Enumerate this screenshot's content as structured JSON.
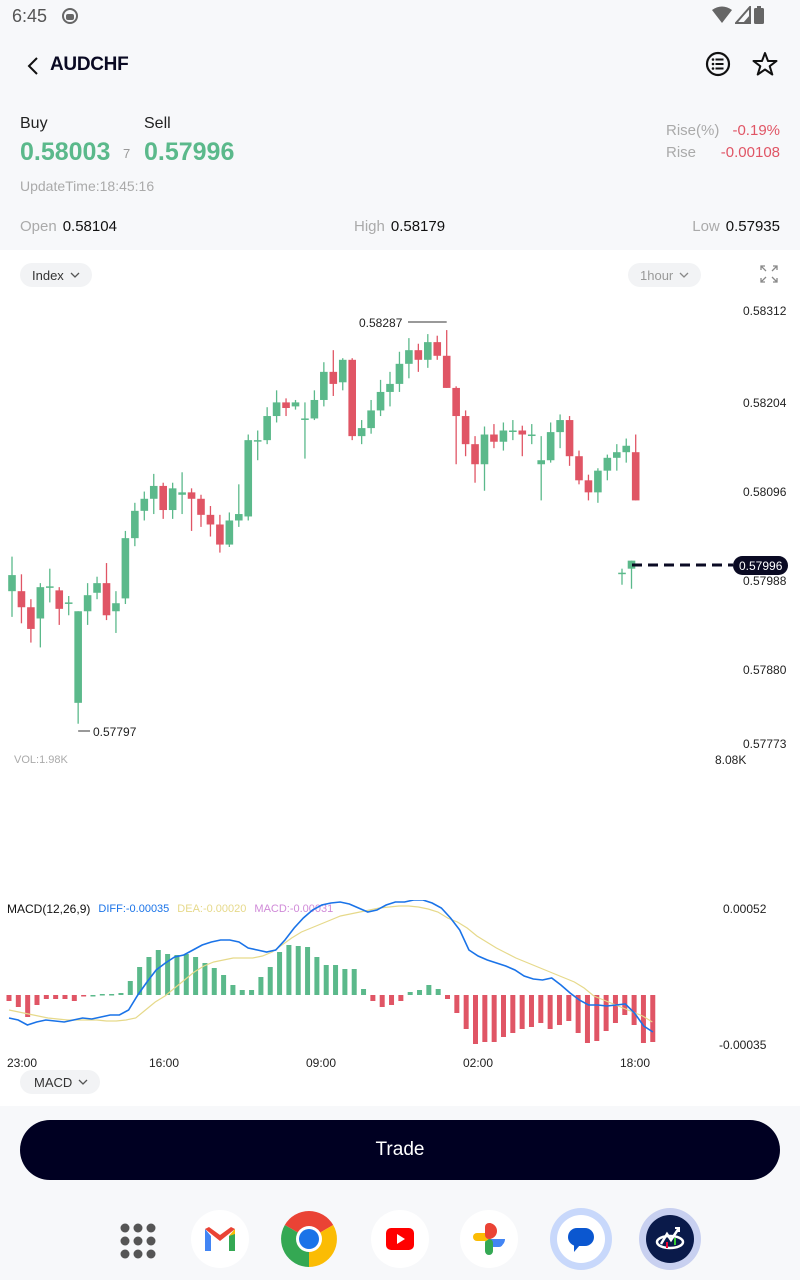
{
  "status_bar": {
    "time": "6:45"
  },
  "header": {
    "title": "AUDCHF"
  },
  "quote": {
    "buy_label": "Buy",
    "buy_price": "0.58003",
    "spread": "7",
    "sell_label": "Sell",
    "sell_price": "0.57996",
    "update_time": "UpdateTime:18:45:16",
    "rise_pct_label": "Rise(%)",
    "rise_pct_value": "-0.19%",
    "rise_label": "Rise",
    "rise_value": "-0.00108",
    "open_label": "Open",
    "open_value": "0.58104",
    "high_label": "High",
    "high_value": "0.58179",
    "low_label": "Low",
    "low_value": "0.57935"
  },
  "chart_controls": {
    "index_label": "Index",
    "interval_label": "1hour",
    "indicator_label": "MACD"
  },
  "colors": {
    "up": "#5bb98b",
    "down": "#e05565",
    "diff": "#1a73e8",
    "dea": "#e6d98a",
    "macd": "#d08ad8",
    "dark": "#0a0a23"
  },
  "chart_data": {
    "type": "candlestick",
    "title": "AUDCHF 1hour",
    "y_axis_ticks": [
      "0.58312",
      "0.58204",
      "0.58096",
      "0.57988",
      "0.57880",
      "0.57773"
    ],
    "x_axis_ticks": [
      "23:00",
      "16:00",
      "09:00",
      "02:00",
      "18:00"
    ],
    "current_price": "0.57996",
    "max_label": "0.58287",
    "min_label": "0.57797",
    "vol_label": "VOL:1.98K",
    "vol_max": "8.08K",
    "candles_ohlc": [
      [
        0.57962,
        0.57982,
        0.58005,
        0.5793
      ],
      [
        0.57962,
        0.57942,
        0.57983,
        0.57922
      ],
      [
        0.57942,
        0.57915,
        0.57952,
        0.57898
      ],
      [
        0.57928,
        0.57967,
        0.57972,
        0.57892
      ],
      [
        0.57968,
        0.57968,
        0.5799,
        0.57948
      ],
      [
        0.57963,
        0.5794,
        0.57967,
        0.5792
      ],
      [
        0.57948,
        0.57948,
        0.57956,
        0.57932
      ],
      [
        0.57823,
        0.57937,
        0.57937,
        0.57797
      ],
      [
        0.57937,
        0.57957,
        0.57972,
        0.5792
      ],
      [
        0.5796,
        0.57972,
        0.5798,
        0.57952
      ],
      [
        0.57972,
        0.57932,
        0.57997,
        0.57926
      ],
      [
        0.57937,
        0.57947,
        0.57962,
        0.5791
      ],
      [
        0.57953,
        0.58028,
        0.58037,
        0.57946
      ],
      [
        0.58028,
        0.58062,
        0.58072,
        0.58018
      ],
      [
        0.58062,
        0.58077,
        0.58086,
        0.5805
      ],
      [
        0.58077,
        0.58093,
        0.58108,
        0.58058
      ],
      [
        0.58093,
        0.58063,
        0.58097,
        0.58052
      ],
      [
        0.58063,
        0.5809,
        0.58097,
        0.58052
      ],
      [
        0.58082,
        0.58085,
        0.5811,
        0.58058
      ],
      [
        0.58085,
        0.58077,
        0.5809,
        0.58037
      ],
      [
        0.58077,
        0.58057,
        0.58082,
        0.58042
      ],
      [
        0.58057,
        0.58045,
        0.58068,
        0.5803
      ],
      [
        0.58045,
        0.5802,
        0.58057,
        0.5801
      ],
      [
        0.5802,
        0.5805,
        0.5806,
        0.58017
      ],
      [
        0.5805,
        0.58058,
        0.58095,
        0.58042
      ],
      [
        0.58055,
        0.5815,
        0.58157,
        0.5805
      ],
      [
        0.5815,
        0.5815,
        0.58162,
        0.58125
      ],
      [
        0.5815,
        0.5818,
        0.58191,
        0.58145
      ],
      [
        0.5818,
        0.58197,
        0.58212,
        0.58172
      ],
      [
        0.58197,
        0.5819,
        0.58202,
        0.5818
      ],
      [
        0.58192,
        0.58197,
        0.582,
        0.58188
      ],
      [
        0.58177,
        0.58177,
        0.58197,
        0.58127
      ],
      [
        0.58177,
        0.582,
        0.58212,
        0.58175
      ],
      [
        0.582,
        0.58235,
        0.58247,
        0.58192
      ],
      [
        0.58235,
        0.5822,
        0.58262,
        0.58205
      ],
      [
        0.58222,
        0.5825,
        0.58252,
        0.58212
      ],
      [
        0.5825,
        0.58155,
        0.58252,
        0.5815
      ],
      [
        0.58155,
        0.58165,
        0.58175,
        0.58145
      ],
      [
        0.58165,
        0.58187,
        0.582,
        0.58158
      ],
      [
        0.58187,
        0.5821,
        0.58225,
        0.5818
      ],
      [
        0.5821,
        0.5822,
        0.58235,
        0.58192
      ],
      [
        0.5822,
        0.58245,
        0.5826,
        0.5821
      ],
      [
        0.58245,
        0.58262,
        0.58277,
        0.58227
      ],
      [
        0.58262,
        0.5825,
        0.5827,
        0.58235
      ],
      [
        0.5825,
        0.58272,
        0.58282,
        0.5824
      ],
      [
        0.58272,
        0.58255,
        0.5828,
        0.5825
      ],
      [
        0.58255,
        0.58215,
        0.58287,
        0.58215
      ],
      [
        0.58215,
        0.5818,
        0.58217,
        0.5812
      ],
      [
        0.5818,
        0.58145,
        0.58187,
        0.5813
      ],
      [
        0.58145,
        0.5812,
        0.58155,
        0.58097
      ],
      [
        0.5812,
        0.58157,
        0.58167,
        0.58087
      ],
      [
        0.58157,
        0.58148,
        0.5817,
        0.5814
      ],
      [
        0.58148,
        0.58162,
        0.58172,
        0.58137
      ],
      [
        0.58162,
        0.58162,
        0.58175,
        0.5815
      ],
      [
        0.58162,
        0.58157,
        0.58168,
        0.5813
      ],
      [
        0.58157,
        0.58157,
        0.5817,
        0.58145
      ],
      [
        0.5812,
        0.58125,
        0.58155,
        0.58075
      ],
      [
        0.58125,
        0.5816,
        0.58172,
        0.58122
      ],
      [
        0.5816,
        0.58175,
        0.58182,
        0.5814
      ],
      [
        0.58175,
        0.5813,
        0.5818,
        0.58118
      ],
      [
        0.5813,
        0.581,
        0.58137,
        0.58095
      ],
      [
        0.581,
        0.58085,
        0.58107,
        0.58075
      ],
      [
        0.58085,
        0.58112,
        0.58115,
        0.58072
      ],
      [
        0.58112,
        0.58128,
        0.58132,
        0.581
      ],
      [
        0.58128,
        0.58135,
        0.58145,
        0.58112
      ],
      [
        0.58135,
        0.58143,
        0.58152,
        0.58122
      ],
      [
        0.58135,
        0.58075,
        0.58157,
        0.58075
      ],
      [
        0.57985,
        0.57985,
        0.5799,
        0.5797
      ],
      [
        0.5799,
        0.58,
        0.58,
        0.57965
      ]
    ],
    "macd": {
      "label": "MACD(12,26,9)",
      "diff_label": "DIFF:-0.00035",
      "dea_label": "DEA:-0.00020",
      "macd_label": "MACD:-0.00031",
      "y_max": "0.00052",
      "y_min": "-0.00035"
    }
  },
  "trade_button": {
    "label": "Trade"
  },
  "dock": {
    "apps": [
      "App drawer",
      "Gmail",
      "Chrome",
      "YouTube",
      "Photos",
      "Messages",
      "Trading app"
    ]
  }
}
